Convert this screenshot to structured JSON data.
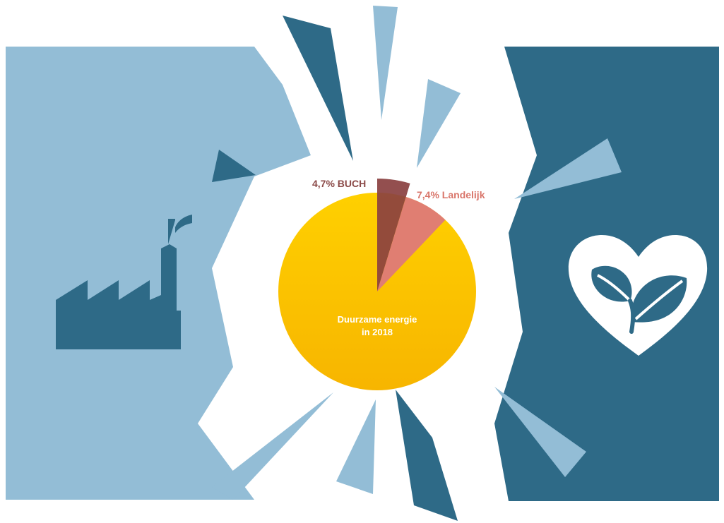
{
  "colors": {
    "light_blue": "#93bdd6",
    "dark_blue": "#2e6a87",
    "sun_yellow": "#ffd000",
    "sun_orange": "#f7b500",
    "buch_color": "#8a4040",
    "buch_label_color": "#8b4a48",
    "landelijk_color": "#e07e72",
    "landelijk_label_color": "#d9756a",
    "background": "#ffffff"
  },
  "icons": {
    "left": "factory-icon",
    "right": "heart-leaves-icon"
  },
  "chart_data": {
    "type": "pie",
    "title": "",
    "center_label": [
      "Duurzame energie",
      "in 2018"
    ],
    "slices": [
      {
        "label": "4,7% BUCH",
        "value": 4.7,
        "color": "#8a4040",
        "exploded": true
      },
      {
        "label": "7,4% Landelijk",
        "value": 7.4,
        "color": "#e07e72",
        "exploded": false
      }
    ],
    "start": "12 o'clock",
    "direction": "clockwise"
  }
}
